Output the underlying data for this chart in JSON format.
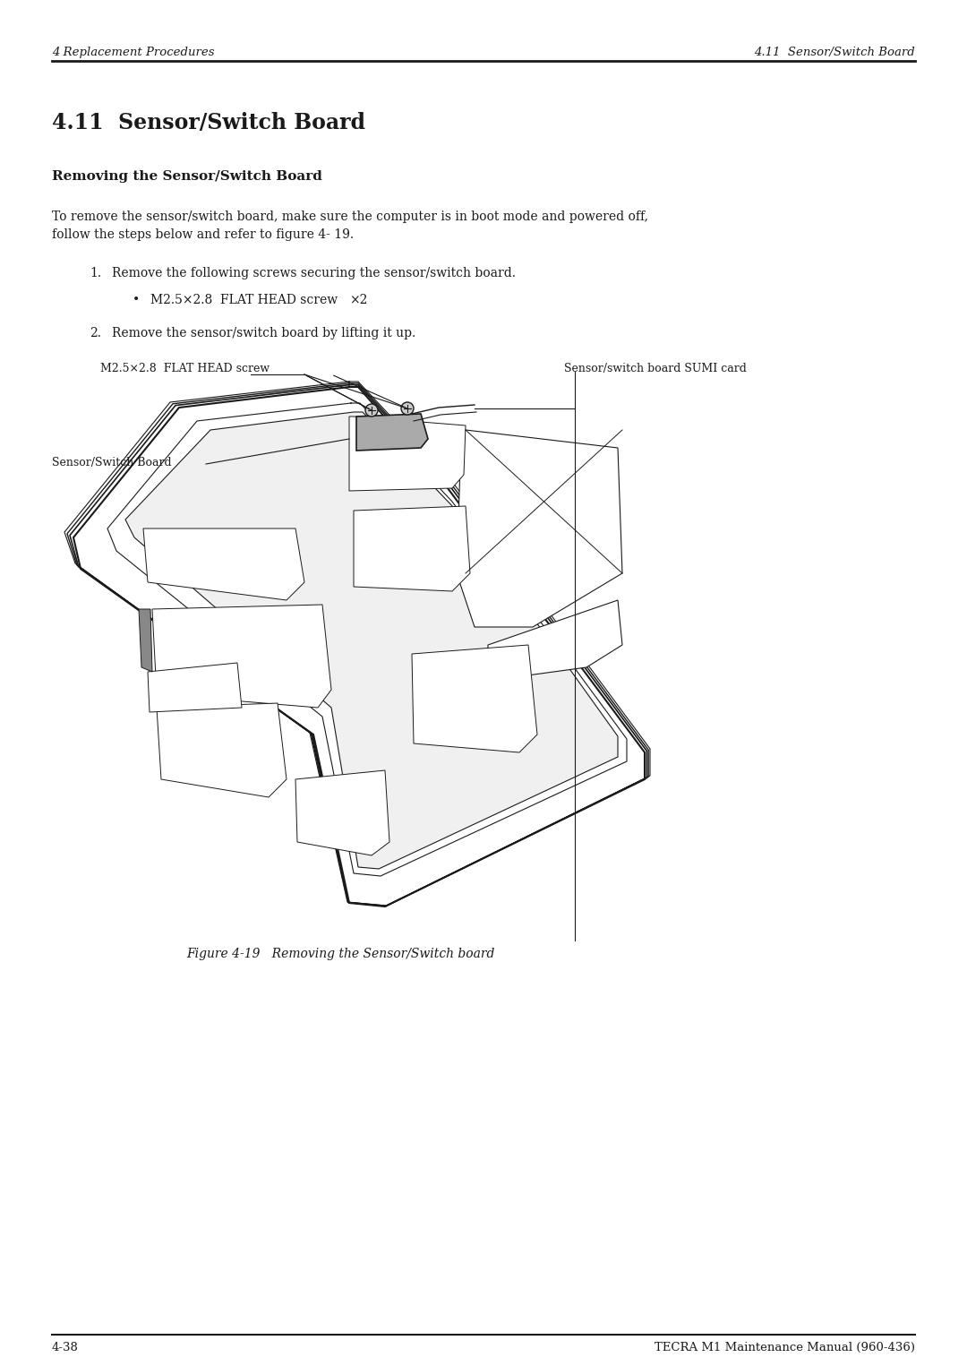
{
  "bg_color": "#ffffff",
  "header_left": "4 Replacement Procedures",
  "header_right": "4.11  Sensor/Switch Board",
  "footer_left": "4-38",
  "footer_right": "TECRA M1 Maintenance Manual (960-436)",
  "section_title": "4.11  Sensor/Switch Board",
  "subsection_title": "Removing the Sensor/Switch Board",
  "body_line1": "To remove the sensor/switch board, make sure the computer is in boot mode and powered off,",
  "body_line2": "follow the steps below and refer to figure 4- 19.",
  "step1": "Remove the following screws securing the sensor/switch board.",
  "bullet1_a": "M2.5×2.8  FLAT HEAD screw",
  "bullet1_b": "×2",
  "step2": "Remove the sensor/switch board by lifting it up.",
  "label_screw": "M2.5×2.8  FLAT HEAD screw",
  "label_sumi": "Sensor/switch board SUMI card",
  "label_board": "Sensor/Switch Board",
  "figure_caption": "Figure 4-19   Removing the Sensor/Switch board",
  "lc": "#1a1a1a",
  "header_fontsize": 9.5,
  "title_fontsize": 17,
  "subtitle_fontsize": 11,
  "body_fontsize": 10,
  "step_fontsize": 10,
  "label_fontsize": 9,
  "caption_fontsize": 10,
  "footer_fontsize": 9.5
}
